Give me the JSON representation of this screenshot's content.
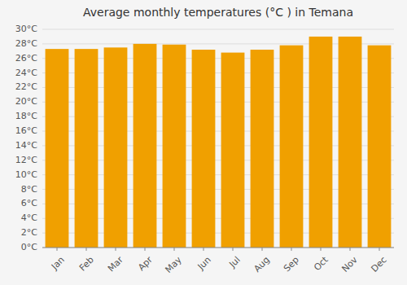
{
  "chart_data": {
    "type": "bar",
    "title": "Average monthly temperatures (°C ) in Temana",
    "categories": [
      "Jan",
      "Feb",
      "Mar",
      "Apr",
      "May",
      "Jun",
      "Jul",
      "Aug",
      "Sep",
      "Oct",
      "Nov",
      "Dec"
    ],
    "values": [
      27.3,
      27.3,
      27.5,
      28.0,
      27.9,
      27.2,
      26.8,
      27.2,
      27.8,
      29.0,
      29.0,
      27.8
    ],
    "color": "#F0A000",
    "ylim": [
      0,
      30
    ],
    "yticks": [
      {
        "value": 0,
        "label": "0°C"
      },
      {
        "value": 2,
        "label": "2°C"
      },
      {
        "value": 4,
        "label": "4°C"
      },
      {
        "value": 6,
        "label": "6°C"
      },
      {
        "value": 8,
        "label": "8°C"
      },
      {
        "value": 10,
        "label": "10°C"
      },
      {
        "value": 12,
        "label": "12°C"
      },
      {
        "value": 14,
        "label": "14°C"
      },
      {
        "value": 16,
        "label": "16°C"
      },
      {
        "value": 18,
        "label": "18°C"
      },
      {
        "value": 20,
        "label": "20°C"
      },
      {
        "value": 22,
        "label": "22°C"
      },
      {
        "value": 24,
        "label": "24°C"
      },
      {
        "value": 26,
        "label": "26°C"
      },
      {
        "value": 28,
        "label": "28°C"
      },
      {
        "value": 30,
        "label": "30°C"
      }
    ],
    "grid": true
  }
}
